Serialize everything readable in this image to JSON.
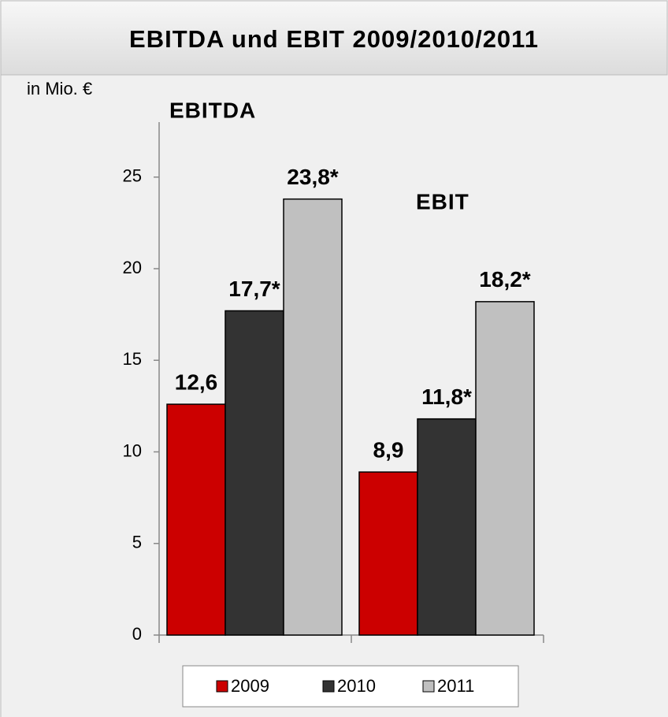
{
  "chart_data": {
    "type": "bar",
    "title": "EBITDA und EBIT 2009/2010/2011",
    "y_unit": "in Mio. €",
    "categories": [
      "EBITDA",
      "EBIT"
    ],
    "series": [
      {
        "name": "2009",
        "color": "#cc0000",
        "values": [
          12.6,
          8.9
        ],
        "value_labels": [
          "12,6",
          "8,9"
        ]
      },
      {
        "name": "2010",
        "color": "#333333",
        "values": [
          17.7,
          11.8
        ],
        "value_labels": [
          "17,7*",
          "11,8*"
        ]
      },
      {
        "name": "2011",
        "color": "#c0c0c0",
        "values": [
          23.8,
          18.2
        ],
        "value_labels": [
          "23,8*",
          "18,2*"
        ]
      }
    ],
    "ylim": [
      0,
      28
    ],
    "yticks": [
      0,
      5,
      10,
      15,
      20,
      25
    ],
    "legend": "bottom"
  }
}
